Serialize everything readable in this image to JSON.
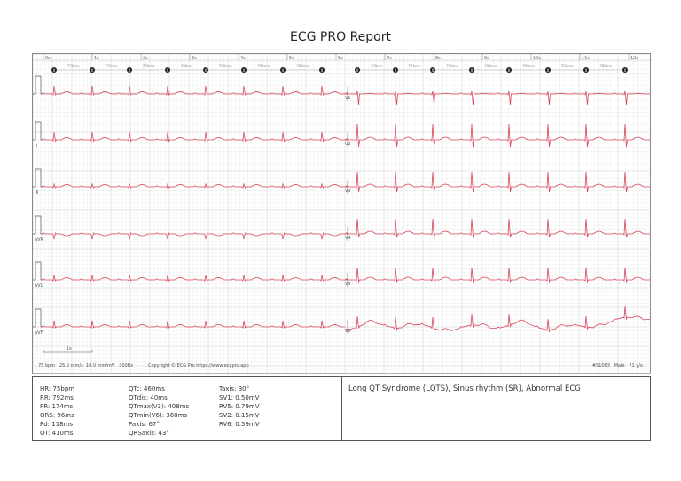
{
  "title": "ECG PRO Report",
  "time_ticks": [
    "0s",
    "1s",
    "2s",
    "3s",
    "4s",
    "5s",
    "6s",
    "7s",
    "8s",
    "9s",
    "10s",
    "11s",
    "12s"
  ],
  "rr_left": [
    "770ms",
    "774ms",
    "790ms",
    "788ms",
    "790ms",
    "792ms",
    "788ms"
  ],
  "rr_right": [
    "778ms",
    "774ms",
    "798ms",
    "788ms",
    "798ms",
    "792ms",
    "788ms"
  ],
  "beat_marker": "0",
  "leads_left": [
    "I",
    "II",
    "III",
    "aVR",
    "aVL",
    "aVF"
  ],
  "leads_right": [
    "V1",
    "V2",
    "V3",
    "V4",
    "V5",
    "V6"
  ],
  "scale_label": "1s",
  "footer": {
    "rate": "75 bpm",
    "speed": "25.0 mm/s",
    "gain": "10.0 mm/mV",
    "filter": "300Hz",
    "copyright": "Copyright © ECG Pro https://www.ecgpro.app",
    "patient_id": "#51063",
    "sex": "Male",
    "age": "71 y/o"
  },
  "measurements": {
    "col1": [
      "HR: 75bpm",
      "RR: 792ms",
      "PR: 174ms",
      "QRS: 96ms",
      "Pd: 118ms",
      "QT: 410ms"
    ],
    "col2": [
      "QTc: 460ms",
      "QTdis: 40ms",
      "QTmax(V3): 408ms",
      "QTmin(V6): 368ms",
      "Paxis: 67°",
      "QRSaxis: 43°"
    ],
    "col3": [
      "Taxis: 30°",
      "SV1: 0.50mV",
      "RV5: 0.79mV",
      "SV2: 0.15mV",
      "RV6: 0.59mV"
    ]
  },
  "diagnosis": "Long QT Syndrome (LQTS), Sinus rhythm (SR), Abnormal ECG",
  "colors": {
    "trace": "#d8455a",
    "grid_minor": "#ececec",
    "grid_major": "#d4d4d4",
    "marker": "#222"
  }
}
